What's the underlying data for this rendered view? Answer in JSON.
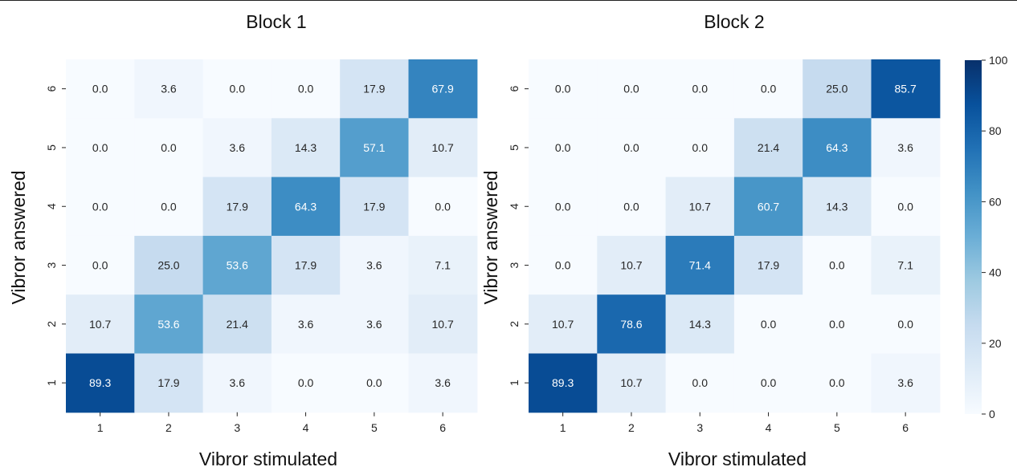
{
  "chart_data": [
    {
      "type": "heatmap",
      "title": "Block 1",
      "xlabel": "Vibror stimulated",
      "ylabel": "Vibror answered",
      "x_categories": [
        "1",
        "2",
        "3",
        "4",
        "5",
        "6"
      ],
      "y_categories": [
        "6",
        "5",
        "4",
        "3",
        "2",
        "1"
      ],
      "values": [
        [
          0.0,
          3.6,
          0.0,
          0.0,
          17.9,
          67.9
        ],
        [
          0.0,
          0.0,
          3.6,
          14.3,
          57.1,
          10.7
        ],
        [
          0.0,
          0.0,
          17.9,
          64.3,
          17.9,
          0.0
        ],
        [
          0.0,
          25.0,
          53.6,
          17.9,
          3.6,
          7.1
        ],
        [
          10.7,
          53.6,
          21.4,
          3.6,
          3.6,
          10.7
        ],
        [
          89.3,
          17.9,
          3.6,
          0.0,
          0.0,
          3.6
        ]
      ]
    },
    {
      "type": "heatmap",
      "title": "Block 2",
      "xlabel": "Vibror stimulated",
      "ylabel": "Vibror answered",
      "x_categories": [
        "1",
        "2",
        "3",
        "4",
        "5",
        "6"
      ],
      "y_categories": [
        "6",
        "5",
        "4",
        "3",
        "2",
        "1"
      ],
      "values": [
        [
          0.0,
          0.0,
          0.0,
          0.0,
          25.0,
          85.7
        ],
        [
          0.0,
          0.0,
          0.0,
          21.4,
          64.3,
          3.6
        ],
        [
          0.0,
          0.0,
          10.7,
          60.7,
          14.3,
          0.0
        ],
        [
          0.0,
          10.7,
          71.4,
          17.9,
          0.0,
          7.1
        ],
        [
          10.7,
          78.6,
          14.3,
          0.0,
          0.0,
          0.0
        ],
        [
          89.3,
          10.7,
          0.0,
          0.0,
          0.0,
          3.6
        ]
      ]
    }
  ],
  "colorbar": {
    "colormap": "Blues",
    "range": [
      0,
      100
    ],
    "ticks": [
      "0",
      "20",
      "40",
      "60",
      "80",
      "100"
    ]
  }
}
